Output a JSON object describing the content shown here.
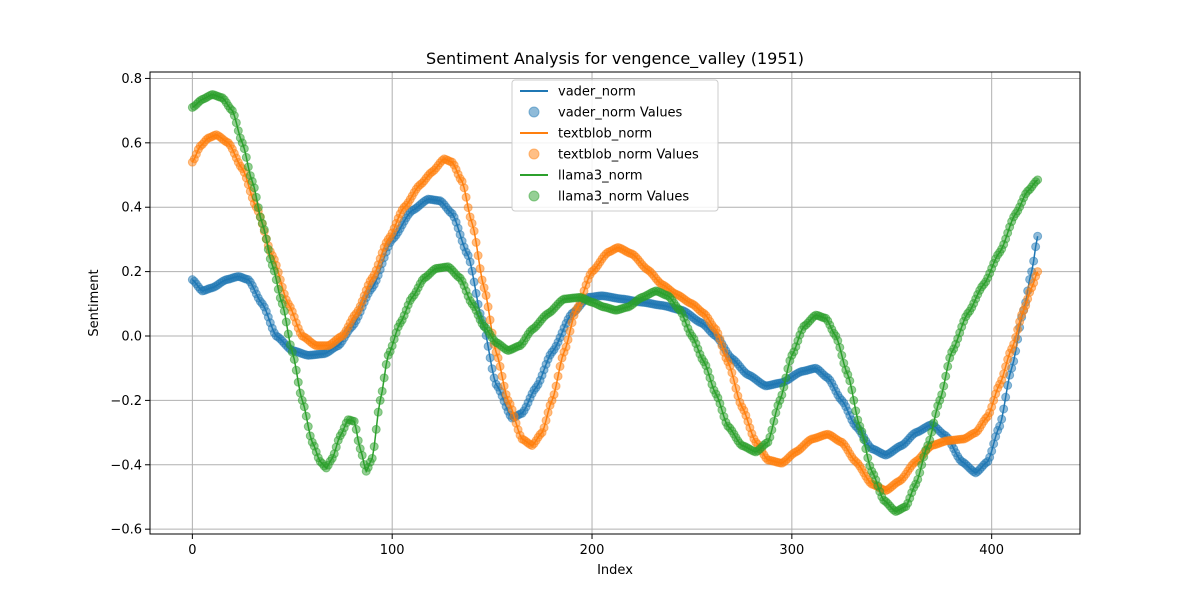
{
  "chart_data": {
    "type": "line",
    "title": "Sentiment Analysis for vengence_valley (1951)",
    "xlabel": "Index",
    "ylabel": "Sentiment",
    "xlim": [
      -21.2,
      444.2
    ],
    "ylim": [
      -0.615,
      0.82
    ],
    "xticks": [
      0,
      100,
      200,
      300,
      400
    ],
    "xtick_labels": [
      "0",
      "100",
      "200",
      "300",
      "400"
    ],
    "yticks": [
      -0.6,
      -0.4,
      -0.2,
      0.0,
      0.2,
      0.4,
      0.6,
      0.8
    ],
    "ytick_labels": [
      "−0.6",
      "−0.4",
      "−0.2",
      "0.0",
      "0.2",
      "0.4",
      "0.6",
      "0.8"
    ],
    "grid": true,
    "legend_position": "upper-center",
    "legend": [
      "vader_norm",
      "vader_norm Values",
      "textblob_norm",
      "textblob_norm Values",
      "llama3_norm",
      "llama3_norm Values"
    ],
    "x_count": 424,
    "series": [
      {
        "name": "vader_norm",
        "color": "#1f77b4",
        "points": [
          [
            0,
            0.175
          ],
          [
            5,
            0.14
          ],
          [
            10,
            0.15
          ],
          [
            17,
            0.175
          ],
          [
            23,
            0.185
          ],
          [
            28,
            0.175
          ],
          [
            35,
            0.1
          ],
          [
            42,
            0.0
          ],
          [
            50,
            -0.045
          ],
          [
            58,
            -0.06
          ],
          [
            66,
            -0.055
          ],
          [
            73,
            -0.03
          ],
          [
            80,
            0.03
          ],
          [
            90,
            0.15
          ],
          [
            100,
            0.3
          ],
          [
            110,
            0.39
          ],
          [
            118,
            0.425
          ],
          [
            124,
            0.42
          ],
          [
            130,
            0.38
          ],
          [
            138,
            0.25
          ],
          [
            145,
            0.05
          ],
          [
            152,
            -0.15
          ],
          [
            160,
            -0.255
          ],
          [
            165,
            -0.24
          ],
          [
            172,
            -0.16
          ],
          [
            180,
            -0.05
          ],
          [
            190,
            0.07
          ],
          [
            198,
            0.12
          ],
          [
            205,
            0.125
          ],
          [
            215,
            0.115
          ],
          [
            225,
            0.105
          ],
          [
            235,
            0.095
          ],
          [
            245,
            0.08
          ],
          [
            255,
            0.04
          ],
          [
            262,
            0.0
          ],
          [
            270,
            -0.07
          ],
          [
            278,
            -0.12
          ],
          [
            287,
            -0.155
          ],
          [
            295,
            -0.145
          ],
          [
            305,
            -0.11
          ],
          [
            312,
            -0.1
          ],
          [
            318,
            -0.13
          ],
          [
            325,
            -0.2
          ],
          [
            332,
            -0.28
          ],
          [
            340,
            -0.35
          ],
          [
            347,
            -0.37
          ],
          [
            355,
            -0.34
          ],
          [
            362,
            -0.3
          ],
          [
            370,
            -0.275
          ],
          [
            377,
            -0.31
          ],
          [
            385,
            -0.39
          ],
          [
            392,
            -0.425
          ],
          [
            398,
            -0.39
          ],
          [
            404,
            -0.28
          ],
          [
            410,
            -0.1
          ],
          [
            416,
            0.08
          ],
          [
            420,
            0.2
          ],
          [
            423,
            0.31
          ]
        ]
      },
      {
        "name": "textblob_norm",
        "color": "#ff7f0e",
        "points": [
          [
            0,
            0.54
          ],
          [
            4,
            0.59
          ],
          [
            8,
            0.615
          ],
          [
            12,
            0.625
          ],
          [
            18,
            0.6
          ],
          [
            25,
            0.52
          ],
          [
            32,
            0.4
          ],
          [
            40,
            0.25
          ],
          [
            48,
            0.1
          ],
          [
            55,
            0.0
          ],
          [
            62,
            -0.03
          ],
          [
            68,
            -0.03
          ],
          [
            75,
            0.0
          ],
          [
            82,
            0.07
          ],
          [
            90,
            0.18
          ],
          [
            98,
            0.3
          ],
          [
            106,
            0.4
          ],
          [
            114,
            0.47
          ],
          [
            120,
            0.51
          ],
          [
            126,
            0.55
          ],
          [
            130,
            0.54
          ],
          [
            135,
            0.48
          ],
          [
            140,
            0.35
          ],
          [
            146,
            0.15
          ],
          [
            152,
            -0.05
          ],
          [
            158,
            -0.2
          ],
          [
            165,
            -0.32
          ],
          [
            170,
            -0.34
          ],
          [
            175,
            -0.3
          ],
          [
            180,
            -0.2
          ],
          [
            186,
            -0.05
          ],
          [
            192,
            0.08
          ],
          [
            200,
            0.2
          ],
          [
            208,
            0.26
          ],
          [
            213,
            0.275
          ],
          [
            220,
            0.255
          ],
          [
            228,
            0.205
          ],
          [
            235,
            0.16
          ],
          [
            242,
            0.13
          ],
          [
            250,
            0.1
          ],
          [
            256,
            0.07
          ],
          [
            262,
            0.02
          ],
          [
            268,
            -0.08
          ],
          [
            275,
            -0.22
          ],
          [
            282,
            -0.33
          ],
          [
            288,
            -0.385
          ],
          [
            295,
            -0.395
          ],
          [
            302,
            -0.36
          ],
          [
            310,
            -0.32
          ],
          [
            318,
            -0.305
          ],
          [
            325,
            -0.33
          ],
          [
            332,
            -0.39
          ],
          [
            340,
            -0.46
          ],
          [
            347,
            -0.48
          ],
          [
            354,
            -0.45
          ],
          [
            362,
            -0.39
          ],
          [
            370,
            -0.34
          ],
          [
            378,
            -0.325
          ],
          [
            386,
            -0.32
          ],
          [
            392,
            -0.3
          ],
          [
            398,
            -0.25
          ],
          [
            404,
            -0.15
          ],
          [
            410,
            -0.04
          ],
          [
            416,
            0.08
          ],
          [
            420,
            0.15
          ],
          [
            423,
            0.2
          ]
        ]
      },
      {
        "name": "llama3_norm",
        "color": "#2ca02c",
        "points": [
          [
            0,
            0.71
          ],
          [
            5,
            0.735
          ],
          [
            10,
            0.75
          ],
          [
            15,
            0.74
          ],
          [
            20,
            0.7
          ],
          [
            25,
            0.6
          ],
          [
            30,
            0.48
          ],
          [
            35,
            0.35
          ],
          [
            40,
            0.22
          ],
          [
            45,
            0.1
          ],
          [
            50,
            -0.05
          ],
          [
            55,
            -0.2
          ],
          [
            60,
            -0.33
          ],
          [
            64,
            -0.39
          ],
          [
            67,
            -0.41
          ],
          [
            70,
            -0.38
          ],
          [
            74,
            -0.31
          ],
          [
            78,
            -0.26
          ],
          [
            81,
            -0.265
          ],
          [
            84,
            -0.35
          ],
          [
            87,
            -0.42
          ],
          [
            90,
            -0.38
          ],
          [
            94,
            -0.2
          ],
          [
            98,
            -0.06
          ],
          [
            104,
            0.04
          ],
          [
            110,
            0.12
          ],
          [
            116,
            0.18
          ],
          [
            122,
            0.21
          ],
          [
            128,
            0.215
          ],
          [
            134,
            0.18
          ],
          [
            140,
            0.1
          ],
          [
            146,
            0.03
          ],
          [
            152,
            -0.02
          ],
          [
            158,
            -0.045
          ],
          [
            164,
            -0.03
          ],
          [
            170,
            0.02
          ],
          [
            178,
            0.07
          ],
          [
            186,
            0.115
          ],
          [
            194,
            0.12
          ],
          [
            200,
            0.105
          ],
          [
            206,
            0.09
          ],
          [
            212,
            0.08
          ],
          [
            218,
            0.09
          ],
          [
            225,
            0.12
          ],
          [
            232,
            0.14
          ],
          [
            238,
            0.125
          ],
          [
            244,
            0.08
          ],
          [
            250,
            0.0
          ],
          [
            256,
            -0.08
          ],
          [
            262,
            -0.18
          ],
          [
            268,
            -0.28
          ],
          [
            275,
            -0.34
          ],
          [
            282,
            -0.36
          ],
          [
            288,
            -0.33
          ],
          [
            294,
            -0.2
          ],
          [
            300,
            -0.06
          ],
          [
            306,
            0.03
          ],
          [
            312,
            0.065
          ],
          [
            317,
            0.055
          ],
          [
            322,
            0.0
          ],
          [
            328,
            -0.12
          ],
          [
            334,
            -0.28
          ],
          [
            340,
            -0.42
          ],
          [
            346,
            -0.51
          ],
          [
            352,
            -0.545
          ],
          [
            357,
            -0.53
          ],
          [
            362,
            -0.46
          ],
          [
            368,
            -0.34
          ],
          [
            374,
            -0.2
          ],
          [
            380,
            -0.05
          ],
          [
            388,
            0.07
          ],
          [
            396,
            0.16
          ],
          [
            404,
            0.26
          ],
          [
            412,
            0.38
          ],
          [
            418,
            0.45
          ],
          [
            423,
            0.485
          ]
        ]
      }
    ]
  }
}
